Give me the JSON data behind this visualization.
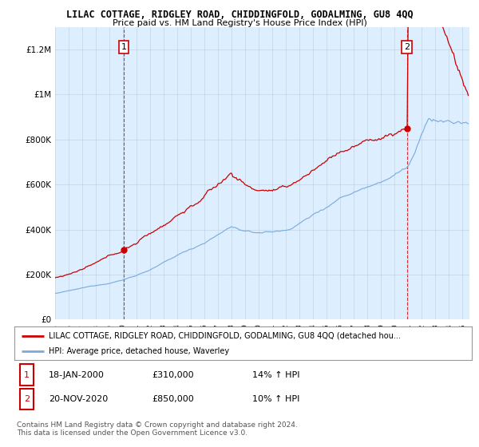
{
  "title": "LILAC COTTAGE, RIDGLEY ROAD, CHIDDINGFOLD, GODALMING, GU8 4QQ",
  "subtitle": "Price paid vs. HM Land Registry's House Price Index (HPI)",
  "ylabel_ticks": [
    "£0",
    "£200K",
    "£400K",
    "£600K",
    "£800K",
    "£1M",
    "£1.2M"
  ],
  "ytick_values": [
    0,
    200000,
    400000,
    600000,
    800000,
    1000000,
    1200000
  ],
  "ylim": [
    0,
    1300000
  ],
  "xlim_start": 1995.0,
  "xlim_end": 2025.5,
  "red_color": "#cc0000",
  "blue_color": "#7aaadd",
  "purchase1_x": 2000.05,
  "purchase1_y": 310000,
  "purchase2_x": 2020.9,
  "purchase2_y": 850000,
  "legend_red": "LILAC COTTAGE, RIDGLEY ROAD, CHIDDINGFOLD, GODALMING, GU8 4QQ (detached hou...",
  "legend_blue": "HPI: Average price, detached house, Waverley",
  "annotation1_date": "18-JAN-2000",
  "annotation1_price": "£310,000",
  "annotation1_hpi": "14% ↑ HPI",
  "annotation2_date": "20-NOV-2020",
  "annotation2_price": "£850,000",
  "annotation2_hpi": "10% ↑ HPI",
  "footnote1": "Contains HM Land Registry data © Crown copyright and database right 2024.",
  "footnote2": "This data is licensed under the Open Government Licence v3.0.",
  "bg_color": "#ffffff",
  "plot_bg_color": "#ddeeff",
  "grid_color": "#bbccdd"
}
